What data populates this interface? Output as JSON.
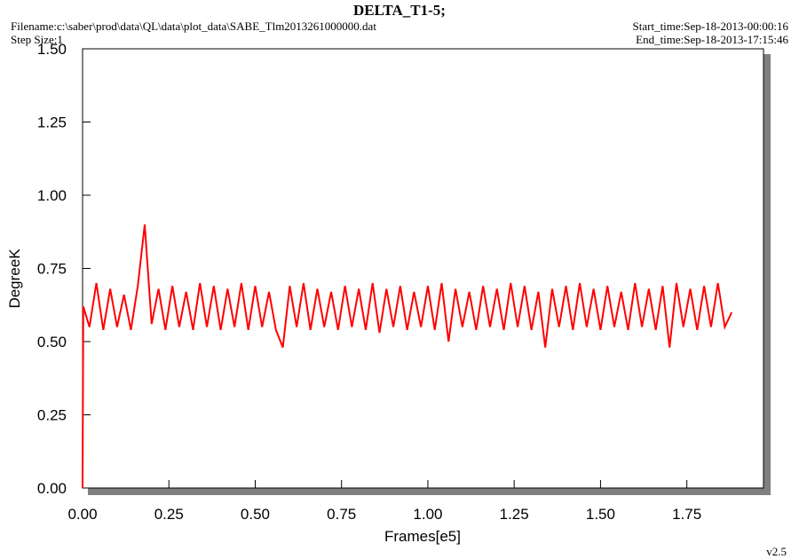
{
  "chart_data": {
    "type": "line",
    "title": "DELTA_T1-5;",
    "filename": "Filename:c:\\saber\\prod\\data\\QL\\data\\plot_data\\SABE_Tlm2013261000000.dat",
    "step_size": "Step Size:1",
    "start_time": "Start_time:Sep-18-2013-00:00:16",
    "end_time": "End_time:Sep-18-2013-17:15:46",
    "version": "v2.5",
    "x_label": "Frames[e5]",
    "y_label": "DegreeK",
    "xlim": [
      0,
      1.972
    ],
    "ylim": [
      0,
      1.5
    ],
    "xticks": [
      {
        "value": 0,
        "label": "0.00"
      },
      0.25,
      {
        "value": 0.5,
        "label": "0.50"
      },
      0.75,
      {
        "value": 1,
        "label": "1.00"
      },
      1.25,
      {
        "value": 1.5,
        "label": "1.50"
      },
      1.75
    ],
    "yticks": [
      {
        "value": 0,
        "label": "0.00"
      },
      0.25,
      {
        "value": 0.5,
        "label": "0.50"
      },
      0.75,
      {
        "value": 1,
        "label": "1.00"
      },
      1.25,
      {
        "value": 1.5,
        "label": "1.50"
      }
    ],
    "x": [
      0,
      0.002,
      0.02,
      0.04,
      0.06,
      0.08,
      0.1,
      0.12,
      0.14,
      0.16,
      0.18,
      0.2,
      0.22,
      0.24,
      0.26,
      0.28,
      0.3,
      0.32,
      0.34,
      0.36,
      0.38,
      0.4,
      0.42,
      0.44,
      0.46,
      0.48,
      0.5,
      0.52,
      0.54,
      0.56,
      0.58,
      0.6,
      0.62,
      0.64,
      0.66,
      0.68,
      0.7,
      0.72,
      0.74,
      0.76,
      0.78,
      0.8,
      0.82,
      0.84,
      0.86,
      0.88,
      0.9,
      0.92,
      0.94,
      0.96,
      0.98,
      1.0,
      1.02,
      1.04,
      1.06,
      1.08,
      1.1,
      1.12,
      1.14,
      1.16,
      1.18,
      1.2,
      1.22,
      1.24,
      1.26,
      1.28,
      1.3,
      1.32,
      1.34,
      1.36,
      1.38,
      1.4,
      1.42,
      1.44,
      1.46,
      1.48,
      1.5,
      1.52,
      1.54,
      1.56,
      1.58,
      1.6,
      1.62,
      1.64,
      1.66,
      1.68,
      1.7,
      1.72,
      1.74,
      1.76,
      1.78,
      1.8,
      1.82,
      1.84,
      1.86,
      1.88
    ],
    "series": [
      {
        "name": "DELTA_T1-5",
        "color": "#ff0000",
        "values": [
          0,
          0.62,
          0.55,
          0.7,
          0.54,
          0.68,
          0.55,
          0.66,
          0.54,
          0.69,
          0.9,
          0.56,
          0.68,
          0.54,
          0.69,
          0.55,
          0.67,
          0.54,
          0.7,
          0.55,
          0.69,
          0.54,
          0.68,
          0.55,
          0.7,
          0.54,
          0.69,
          0.55,
          0.67,
          0.54,
          0.48,
          0.69,
          0.55,
          0.7,
          0.54,
          0.68,
          0.55,
          0.67,
          0.54,
          0.69,
          0.55,
          0.68,
          0.54,
          0.7,
          0.53,
          0.68,
          0.55,
          0.69,
          0.54,
          0.67,
          0.55,
          0.69,
          0.54,
          0.7,
          0.5,
          0.68,
          0.55,
          0.67,
          0.54,
          0.69,
          0.55,
          0.68,
          0.54,
          0.7,
          0.55,
          0.69,
          0.54,
          0.67,
          0.48,
          0.68,
          0.55,
          0.69,
          0.54,
          0.7,
          0.55,
          0.68,
          0.54,
          0.69,
          0.55,
          0.67,
          0.54,
          0.7,
          0.55,
          0.68,
          0.54,
          0.69,
          0.48,
          0.7,
          0.55,
          0.68,
          0.54,
          0.69,
          0.55,
          0.7,
          0.55,
          0.6
        ]
      }
    ]
  }
}
